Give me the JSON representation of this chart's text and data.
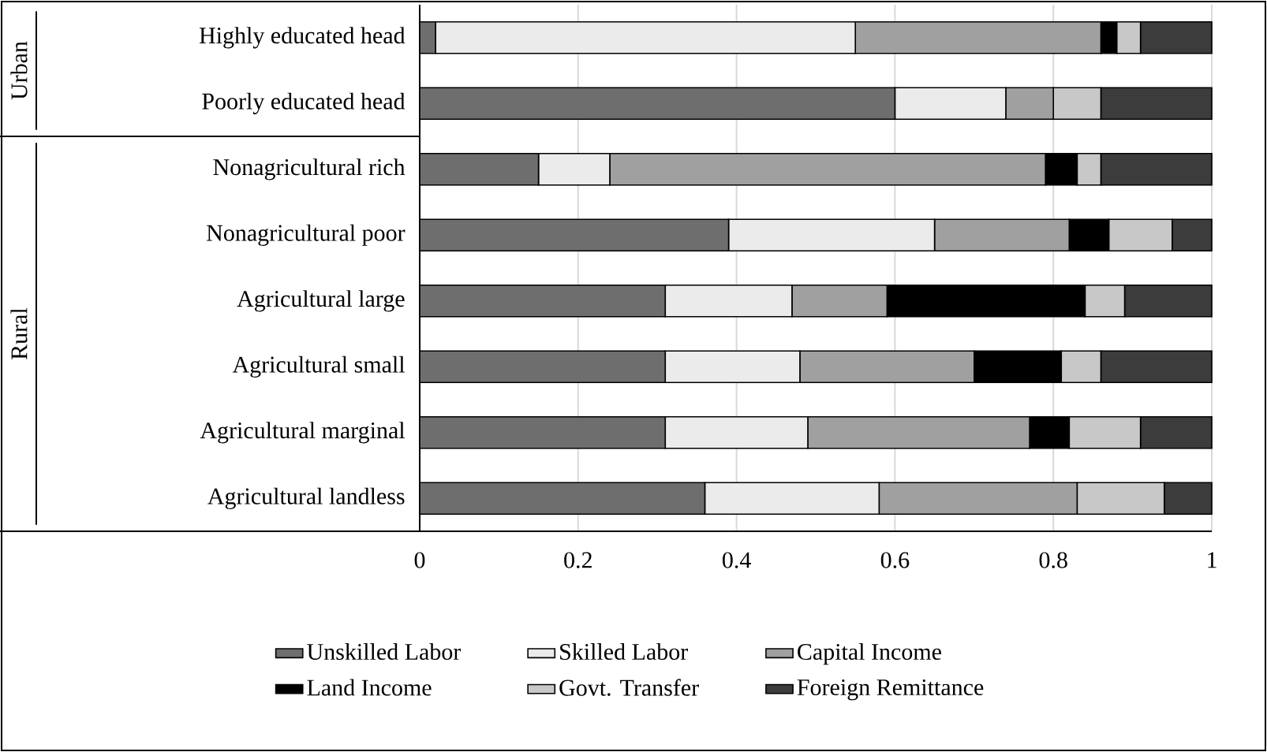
{
  "chart_data": {
    "type": "bar",
    "orientation": "horizontal",
    "stacked": true,
    "categories": [
      "Highly educated head",
      "Poorly educated head",
      "Nonagricultural rich",
      "Nonagricultural poor",
      "Agricultural large",
      "Agricultural small",
      "Agricultural marginal",
      "Agricultural landless"
    ],
    "series": [
      {
        "name": "Unskilled Labor",
        "color": "#6e6e6e",
        "values": [
          0.02,
          0.6,
          0.15,
          0.39,
          0.31,
          0.31,
          0.31,
          0.36
        ]
      },
      {
        "name": "Skilled Labor",
        "color": "#ebebeb",
        "values": [
          0.53,
          0.14,
          0.09,
          0.26,
          0.16,
          0.17,
          0.18,
          0.22
        ]
      },
      {
        "name": "Capital Income",
        "color": "#a0a0a0",
        "values": [
          0.31,
          0.06,
          0.55,
          0.17,
          0.12,
          0.22,
          0.28,
          0.25
        ]
      },
      {
        "name": "Land Income",
        "color": "#000000",
        "values": [
          0.02,
          0,
          0.04,
          0.05,
          0.25,
          0.11,
          0.05,
          0
        ]
      },
      {
        "name": "Govt.  Transfer",
        "color": "#c8c8c8",
        "values": [
          0.03,
          0.06,
          0.03,
          0.08,
          0.05,
          0.05,
          0.09,
          0.11
        ]
      },
      {
        "name": "Foreign Remittance",
        "color": "#3c3c3c",
        "values": [
          0.09,
          0.14,
          0.14,
          0.05,
          0.11,
          0.14,
          0.09,
          0.06
        ]
      }
    ],
    "xlim": [
      0,
      1
    ],
    "xticks": [
      0,
      0.2,
      0.4,
      0.6,
      0.8,
      1
    ],
    "grid": "x",
    "legend": "bottom",
    "annotations": [
      "Urban",
      "Rural"
    ]
  }
}
